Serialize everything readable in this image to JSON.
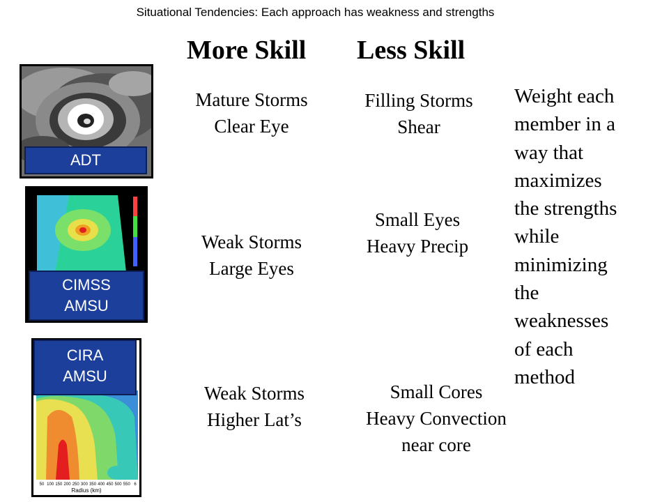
{
  "page_title": "Situational Tendencies: Each approach has weakness and strengths",
  "headers": {
    "more": "More Skill",
    "less": "Less Skill"
  },
  "rows": [
    {
      "method": {
        "line1": "ADT",
        "line2": ""
      },
      "more": {
        "line1": "Mature Storms",
        "line2": "Clear Eye",
        "line3": ""
      },
      "less": {
        "line1": "Filling Storms",
        "line2": "Shear",
        "line3": ""
      }
    },
    {
      "method": {
        "line1": "CIMSS",
        "line2": "AMSU"
      },
      "more": {
        "line1": "Weak Storms",
        "line2": "Large Eyes",
        "line3": ""
      },
      "less": {
        "line1": "Small Eyes",
        "line2": "Heavy Precip",
        "line3": ""
      }
    },
    {
      "method": {
        "line1": "CIRA",
        "line2": "AMSU"
      },
      "more": {
        "line1": "Weak Storms",
        "line2": "Higher Lat’s",
        "line3": ""
      },
      "less": {
        "line1": "Small Cores",
        "line2": "Heavy Convection",
        "line3": "near core"
      }
    }
  ],
  "note_lines": [
    "Weight each",
    "member in a",
    "way that",
    "maximizes",
    "the strengths",
    "while",
    "minimizing",
    "the",
    "weaknesses",
    "of each",
    "method"
  ],
  "cira_axis": {
    "label": "Radius (km)",
    "ticks": [
      "50",
      "100",
      "150",
      "200",
      "250",
      "300",
      "350",
      "400",
      "450",
      "500",
      "550",
      "6"
    ]
  },
  "colors": {
    "tag_bg": "#1d3f9c",
    "tag_text": "#ffffff"
  }
}
